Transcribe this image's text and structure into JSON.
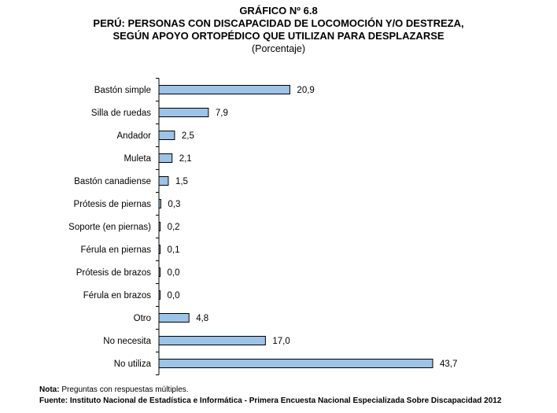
{
  "header": {
    "number": "GRÁFICO Nº 6.8",
    "line1": "PERÚ: PERSONAS CON DISCAPACIDAD DE LOCOMOCIÓN Y/O DESTREZA,",
    "line2": "SEGÚN APOYO ORTOPÉDICO QUE UTILIZAN PARA DESPLAZARSE",
    "unit": "(Porcentaje)"
  },
  "chart_data": {
    "type": "bar",
    "orientation": "horizontal",
    "categories": [
      "Bastón simple",
      "Silla de ruedas",
      "Andador",
      "Muleta",
      "Bastón canadiense",
      "Prótesis de piernas",
      "Soporte (en piernas)",
      "Férula en piernas",
      "Prótesis de brazos",
      "Férula en brazos",
      "Otro",
      "No necesita",
      "No utiliza"
    ],
    "values": [
      20.9,
      7.9,
      2.5,
      2.1,
      1.5,
      0.3,
      0.2,
      0.1,
      0.0,
      0.0,
      4.8,
      17.0,
      43.7
    ],
    "value_labels": [
      "20,9",
      "7,9",
      "2,5",
      "2,1",
      "1,5",
      "0,3",
      "0,2",
      "0,1",
      "0,0",
      "0,0",
      "4,8",
      "17,0",
      "43,7"
    ],
    "bar_color": "#9dc3e6",
    "xlim": [
      0,
      43.7
    ],
    "grid": false,
    "title": "",
    "xlabel": "",
    "ylabel": ""
  },
  "footer": {
    "note_label": "Nota:",
    "note_text": " Preguntas con respuestas múltiples.",
    "source": "Fuente: Instituto Nacional de Estadística e Informática - Primera Encuesta Nacional Especializada Sobre Discapacidad 2012"
  }
}
